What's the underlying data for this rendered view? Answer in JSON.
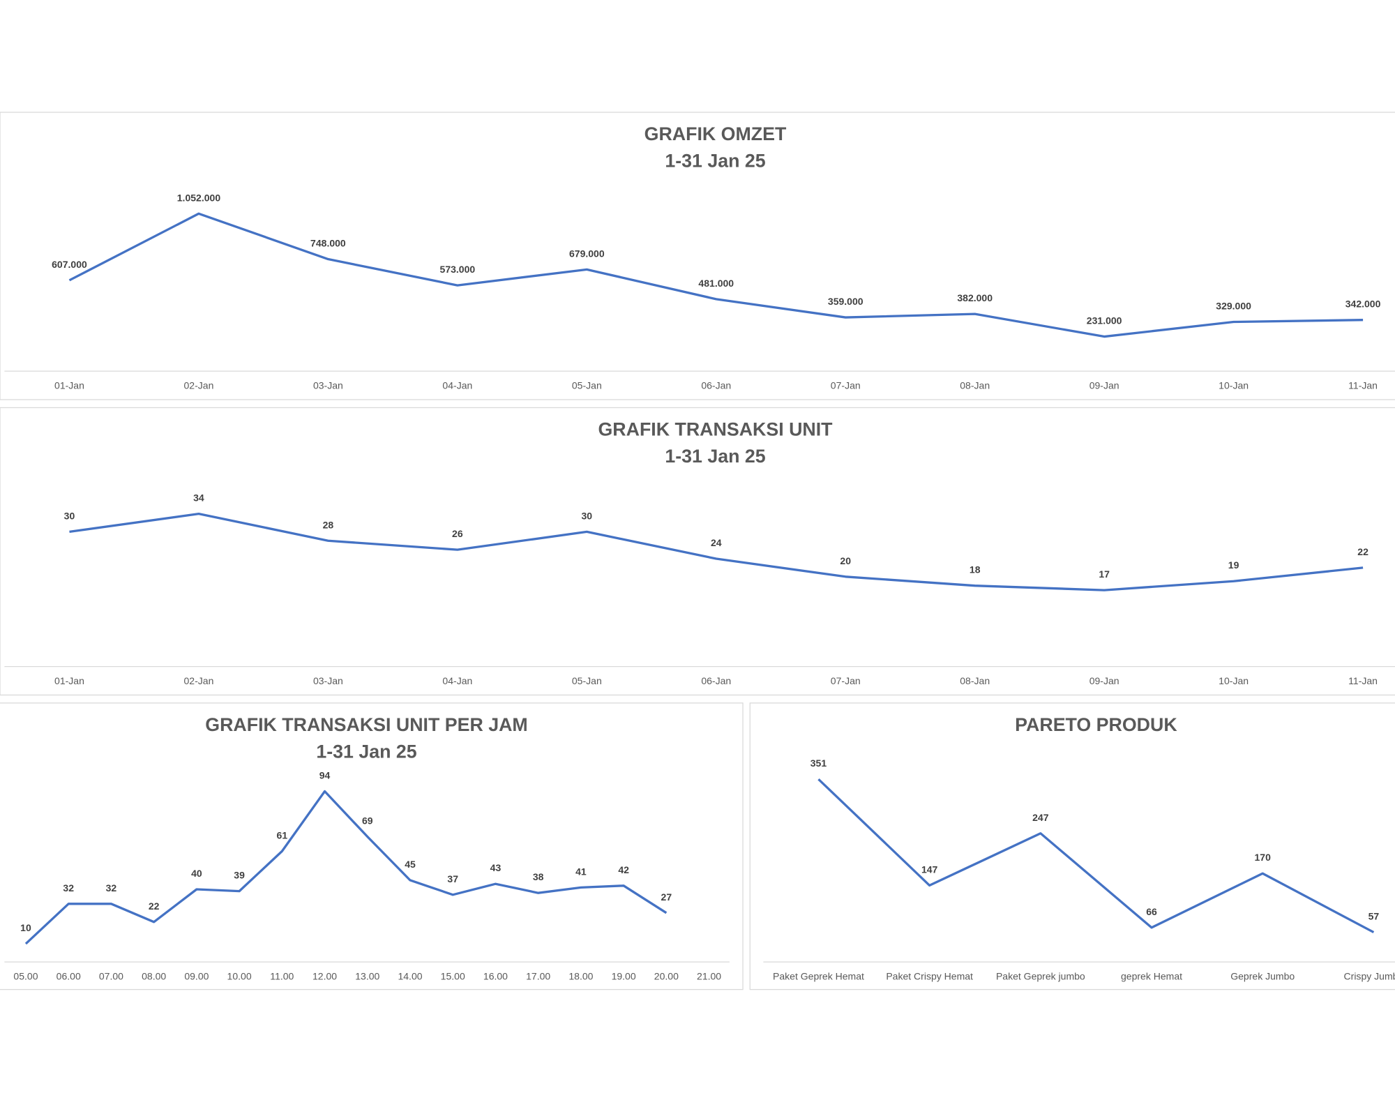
{
  "chart_data": [
    {
      "type": "line",
      "title": "GRAFIK OMZET",
      "subtitle": "1-31 Jan 25",
      "categories": [
        "01-Jan",
        "02-Jan",
        "03-Jan",
        "04-Jan",
        "05-Jan",
        "06-Jan",
        "07-Jan",
        "08-Jan",
        "09-Jan",
        "10-Jan",
        "11-Jan"
      ],
      "values": [
        607000,
        1052000,
        748000,
        573000,
        679000,
        481000,
        359000,
        382000,
        231000,
        329000,
        342000
      ],
      "value_labels": [
        "607.000",
        "1.052.000",
        "748.000",
        "573.000",
        "679.000",
        "481.000",
        "359.000",
        "382.000",
        "231.000",
        "329.000",
        "342.000"
      ],
      "color": "#4472c4",
      "ylim": [
        0,
        1200000
      ]
    },
    {
      "type": "line",
      "title": "GRAFIK TRANSAKSI UNIT",
      "subtitle": "1-31 Jan 25",
      "categories": [
        "01-Jan",
        "02-Jan",
        "03-Jan",
        "04-Jan",
        "05-Jan",
        "06-Jan",
        "07-Jan",
        "08-Jan",
        "09-Jan",
        "10-Jan",
        "11-Jan"
      ],
      "values": [
        30,
        34,
        28,
        26,
        30,
        24,
        20,
        18,
        17,
        19,
        22
      ],
      "color": "#4472c4",
      "ylim": [
        0,
        40
      ]
    },
    {
      "type": "line",
      "title": "GRAFIK TRANSAKSI UNIT PER JAM",
      "subtitle": "1-31 Jan 25",
      "categories": [
        "05.00",
        "06.00",
        "07.00",
        "08.00",
        "09.00",
        "10.00",
        "11.00",
        "12.00",
        "13.00",
        "14.00",
        "15.00",
        "16.00",
        "17.00",
        "18.00",
        "19.00",
        "20.00",
        "21.00"
      ],
      "values": [
        10,
        32,
        32,
        22,
        40,
        39,
        61,
        94,
        69,
        45,
        37,
        43,
        38,
        41,
        42,
        27,
        null
      ],
      "color": "#4472c4",
      "ylim": [
        0,
        100
      ]
    },
    {
      "type": "line",
      "title": "PARETO PRODUK",
      "categories": [
        "Paket Geprek Hemat",
        "Paket Crispy Hemat",
        "Paket Geprek jumbo",
        "geprek Hemat",
        "Geprek Jumbo",
        "Crispy Jumbo"
      ],
      "values": [
        351,
        147,
        247,
        66,
        170,
        57
      ],
      "color": "#4472c4",
      "ylim": [
        0,
        400
      ]
    }
  ]
}
